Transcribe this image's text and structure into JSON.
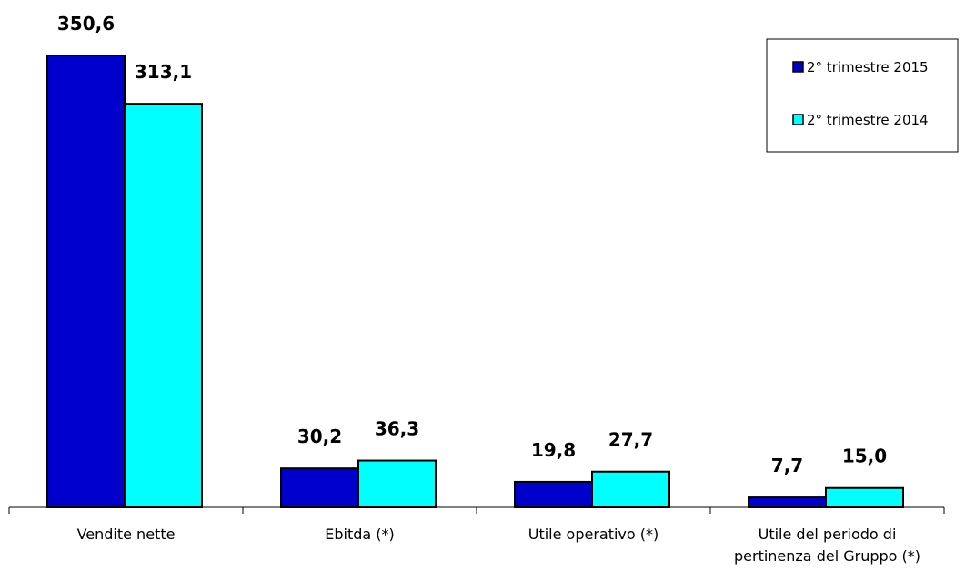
{
  "chart_data": {
    "type": "bar",
    "title": "",
    "xlabel": "",
    "ylabel": "",
    "categories": [
      [
        "Vendite nette"
      ],
      [
        "Ebitda (*)"
      ],
      [
        "Utile operativo (*)"
      ],
      [
        "Utile del periodo di",
        "pertinenza del Gruppo (*)"
      ]
    ],
    "series": [
      {
        "name": "2° trimestre 2015",
        "color": "#0000cc",
        "values": [
          350.6,
          30.2,
          19.8,
          7.7
        ],
        "labels": [
          "350,6",
          "30,2",
          "19,8",
          "7,7"
        ]
      },
      {
        "name": "2° trimestre 2014",
        "color": "#00ffff",
        "values": [
          313.1,
          36.3,
          27.7,
          15.0
        ],
        "labels": [
          "313,1",
          "36,3",
          "27,7",
          "15,0"
        ]
      }
    ],
    "ylim": [
      0,
      400
    ],
    "grid": false,
    "legend": "top-right"
  }
}
